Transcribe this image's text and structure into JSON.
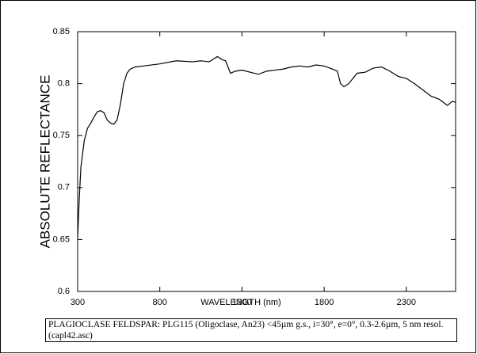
{
  "chart_data": {
    "type": "line",
    "xlabel": "WAVELENGTH (nm)",
    "ylabel": "ABSOLUTE REFLECTANCE",
    "caption": "PLAGIOCLASE FELDSPAR: PLG115 (Oligoclase, An23) <45µm g.s., i=30°, e=0°, 0.3-2.6µm, 5 nm resol. (capl42.asc)",
    "color": "#000000",
    "xlim": [
      300,
      2600
    ],
    "xticks": [
      300,
      800,
      1300,
      1800,
      2300
    ],
    "ylim": [
      0.6,
      0.85
    ],
    "yticks": [
      0.6,
      0.65,
      0.7,
      0.75,
      0.8,
      0.85
    ],
    "x": [
      300,
      310,
      320,
      340,
      360,
      380,
      400,
      420,
      440,
      460,
      480,
      500,
      520,
      540,
      560,
      580,
      600,
      620,
      650,
      700,
      800,
      900,
      1000,
      1050,
      1100,
      1150,
      1180,
      1200,
      1230,
      1260,
      1300,
      1350,
      1400,
      1450,
      1500,
      1550,
      1600,
      1650,
      1700,
      1750,
      1800,
      1850,
      1880,
      1900,
      1920,
      1950,
      2000,
      2050,
      2100,
      2150,
      2200,
      2250,
      2300,
      2350,
      2400,
      2450,
      2500,
      2550,
      2580,
      2600
    ],
    "values": [
      0.652,
      0.69,
      0.72,
      0.745,
      0.757,
      0.762,
      0.768,
      0.773,
      0.774,
      0.772,
      0.765,
      0.762,
      0.761,
      0.765,
      0.78,
      0.8,
      0.81,
      0.814,
      0.816,
      0.817,
      0.819,
      0.822,
      0.821,
      0.822,
      0.821,
      0.826,
      0.823,
      0.822,
      0.81,
      0.812,
      0.813,
      0.811,
      0.809,
      0.812,
      0.813,
      0.814,
      0.816,
      0.817,
      0.816,
      0.818,
      0.817,
      0.814,
      0.812,
      0.8,
      0.797,
      0.8,
      0.81,
      0.811,
      0.815,
      0.816,
      0.812,
      0.807,
      0.805,
      0.8,
      0.794,
      0.788,
      0.785,
      0.779,
      0.783,
      0.782
    ]
  }
}
